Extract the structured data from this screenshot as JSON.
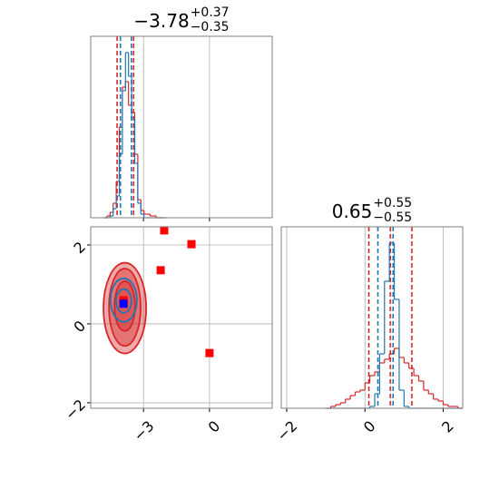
{
  "chart_data": [
    {
      "type": "histogram",
      "title": {
        "value": "−3.78",
        "plus": "+0.37",
        "minus": "−0.35"
      },
      "bins": [
        -4.8,
        -4.66,
        -4.52,
        -4.38,
        -4.24,
        -4.1,
        -3.96,
        -3.82,
        -3.68,
        -3.54,
        -3.4,
        -3.26,
        -3.12,
        -2.98,
        -2.84,
        -2.7,
        -2.56,
        -2.42,
        -2.28,
        -2.14,
        -2.0
      ],
      "xlim": [
        -5.4,
        2.85
      ],
      "xticks": [
        -3,
        0
      ],
      "ylim": [
        0,
        1
      ],
      "grid": true,
      "series": [
        {
          "color": "#d62728",
          "values": [
            0,
            0.01,
            0.03,
            0.08,
            0.2,
            0.5,
            0.72,
            0.75,
            0.62,
            0.58,
            0.35,
            0.1,
            0.04,
            0.02,
            0.02,
            0.01,
            0.01,
            0,
            0,
            0
          ],
          "quantiles": [
            -4.2,
            -3.45
          ]
        },
        {
          "color": "#1f77b4",
          "values": [
            0,
            0,
            0.01,
            0.05,
            0.12,
            0.35,
            0.7,
            0.91,
            0.78,
            0.55,
            0.3,
            0.08,
            0.02,
            0,
            0,
            0,
            0,
            0,
            0,
            0
          ],
          "quantiles": [
            -4.05,
            -3.55
          ]
        }
      ]
    },
    {
      "type": "contour",
      "xlim": [
        -5.4,
        2.85
      ],
      "ylim": [
        -2.14,
        2.46
      ],
      "xticks": [
        {
          "value": -3,
          "label": "−3"
        },
        {
          "value": 0,
          "label": "0"
        }
      ],
      "yticks": [
        {
          "value": -2,
          "label": "−2"
        },
        {
          "value": 0,
          "label": "0"
        },
        {
          "value": 2,
          "label": "2"
        }
      ],
      "grid": true,
      "series": [
        {
          "color": "#d62728",
          "filled": true,
          "contours": [
            {
              "cx": -3.85,
              "cy": 0.4,
              "rx": 0.97,
              "ry": 1.15
            },
            {
              "cx": -3.85,
              "cy": 0.42,
              "rx": 0.72,
              "ry": 0.98
            },
            {
              "cx": -3.85,
              "cy": 0.45,
              "rx": 0.47,
              "ry": 0.63
            }
          ],
          "marker_color": "#ff0000",
          "points": {
            "x": [
              -2.06,
              -0.82,
              -2.22,
              0.0,
              -3.91
            ],
            "y": [
              2.37,
              2.02,
              1.36,
              -0.74,
              0.6
            ]
          }
        },
        {
          "color": "#1f77b4",
          "filled": false,
          "contours": [
            {
              "cx": -3.9,
              "cy": 0.6,
              "rx": 0.6,
              "ry": 0.55
            },
            {
              "cx": -3.9,
              "cy": 0.58,
              "rx": 0.35,
              "ry": 0.3
            }
          ],
          "marker_color": "#0000ff",
          "points": {
            "x": [
              -3.91
            ],
            "y": [
              0.51
            ]
          }
        }
      ]
    },
    {
      "type": "histogram",
      "title": {
        "value": "0.65",
        "plus": "+0.55",
        "minus": "−0.55"
      },
      "bins": [
        -1,
        -0.875,
        -0.75,
        -0.625,
        -0.5,
        -0.375,
        -0.25,
        -0.125,
        0,
        0.125,
        0.25,
        0.375,
        0.5,
        0.625,
        0.75,
        0.875,
        1,
        1.125,
        1.25,
        1.375,
        1.5,
        1.625,
        1.75,
        1.875,
        2,
        2.125,
        2.25,
        2.375,
        2.5
      ],
      "xlim": [
        -2.14,
        2.5
      ],
      "xticks": [
        {
          "value": -2,
          "label": "−2"
        },
        {
          "value": 0,
          "label": "0"
        },
        {
          "value": 2,
          "label": "2"
        }
      ],
      "ylim": [
        0,
        1
      ],
      "grid": true,
      "series": [
        {
          "color": "#d62728",
          "values": [
            0,
            0.01,
            0.02,
            0.03,
            0.05,
            0.07,
            0.09,
            0.1,
            0.14,
            0.18,
            0.2,
            0.25,
            0.27,
            0.3,
            0.33,
            0.28,
            0.25,
            0.22,
            0.18,
            0.15,
            0.1,
            0.08,
            0.05,
            0.04,
            0.02,
            0.01,
            0.01,
            0
          ],
          "quantiles": [
            0.1,
            0.65,
            1.2
          ]
        },
        {
          "color": "#1f77b4",
          "values": [
            0,
            0,
            0,
            0,
            0,
            0,
            0,
            0,
            0,
            0.01,
            0.08,
            0.3,
            0.7,
            0.91,
            0.6,
            0.1,
            0.01,
            0,
            0,
            0,
            0,
            0,
            0,
            0,
            0,
            0,
            0,
            0
          ],
          "quantiles": [
            0.33,
            0.72
          ]
        }
      ]
    }
  ]
}
